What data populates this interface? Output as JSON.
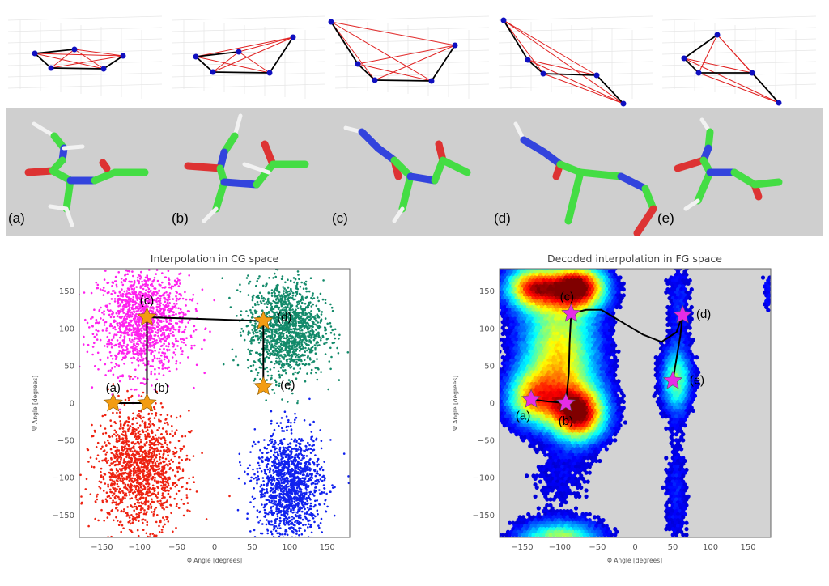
{
  "panel_labels": [
    "(a)",
    "(b)",
    "(c)",
    "(d)",
    "(e)"
  ],
  "colors": {
    "cg_star": "#f39c12",
    "fg_star": "#e62ce6",
    "path": "#000000",
    "fg_background": "#d3d3d3",
    "bond_chain": "#000000",
    "bond_pair": "#e02020",
    "bead": "#1010c0"
  },
  "chart_data": [
    {
      "type": "scatter",
      "title": "Interpolation in CG space",
      "xlabel": "Φ Angle [degrees]",
      "ylabel": "Ψ Angle [degrees]",
      "xlim": [
        -180,
        180
      ],
      "ylim": [
        -180,
        180
      ],
      "xticks": [
        -150,
        -100,
        -50,
        0,
        50,
        100,
        150
      ],
      "yticks": [
        -150,
        -100,
        -50,
        0,
        50,
        100,
        150
      ],
      "xtick_labels": [
        "−150",
        "−100",
        "−50",
        "0",
        "50",
        "100",
        "150"
      ],
      "ytick_labels": [
        "−150",
        "−100",
        "−50",
        "0",
        "50",
        "100",
        "150"
      ],
      "clusters": [
        {
          "name": "magenta",
          "color": "#ff22ee",
          "center": [
            -95,
            110
          ],
          "spread": [
            30,
            35
          ]
        },
        {
          "name": "green",
          "color": "#138a6a",
          "center": [
            95,
            100
          ],
          "spread": [
            25,
            32
          ]
        },
        {
          "name": "red",
          "color": "#ee2211",
          "center": [
            -100,
            -90
          ],
          "spread": [
            28,
            38
          ]
        },
        {
          "name": "blue",
          "color": "#1122ee",
          "center": [
            100,
            -110
          ],
          "spread": [
            22,
            35
          ]
        }
      ],
      "path": [
        [
          -135,
          0
        ],
        [
          -90,
          0
        ],
        [
          -90,
          115
        ],
        [
          65,
          110
        ],
        [
          65,
          22
        ]
      ],
      "points": [
        {
          "label": "(a)",
          "phi": -135,
          "psi": 0
        },
        {
          "label": "(b)",
          "phi": -90,
          "psi": 0
        },
        {
          "label": "(c)",
          "phi": -90,
          "psi": 115
        },
        {
          "label": "(d)",
          "phi": 65,
          "psi": 110
        },
        {
          "label": "(e)",
          "phi": 65,
          "psi": 22
        }
      ]
    },
    {
      "type": "heatmap",
      "title": "Decoded interpolation in FG space",
      "xlabel": "Φ Angle [degrees]",
      "ylabel": "Ψ Angle [degrees]",
      "xlim": [
        -180,
        180
      ],
      "ylim": [
        -180,
        180
      ],
      "xticks": [
        -150,
        -100,
        -50,
        0,
        50,
        100,
        150
      ],
      "yticks": [
        -150,
        -100,
        -50,
        0,
        50,
        100,
        150
      ],
      "xtick_labels": [
        "−150",
        "−100",
        "−50",
        "0",
        "50",
        "100",
        "150"
      ],
      "ytick_labels": [
        "−150",
        "−100",
        "−50",
        "0",
        "50",
        "100",
        "150"
      ],
      "density_components": [
        [
          -75,
          155,
          25,
          20,
          1.0
        ],
        [
          -135,
          155,
          25,
          20,
          0.8
        ],
        [
          -100,
          100,
          35,
          40,
          0.45
        ],
        [
          -100,
          40,
          35,
          35,
          0.45
        ],
        [
          -75,
          -15,
          25,
          25,
          1.0
        ],
        [
          -135,
          5,
          25,
          25,
          0.6
        ],
        [
          -100,
          -185,
          38,
          18,
          0.6
        ],
        [
          -100,
          -100,
          35,
          30,
          0.1
        ],
        [
          55,
          30,
          14,
          30,
          0.5
        ],
        [
          58,
          135,
          12,
          40,
          0.15
        ],
        [
          55,
          -120,
          12,
          55,
          0.14
        ],
        [
          180,
          150,
          8,
          22,
          0.15
        ]
      ],
      "path": [
        [
          -138,
          5
        ],
        [
          -115,
          2
        ],
        [
          -92,
          0
        ],
        [
          -88,
          40
        ],
        [
          -87,
          80
        ],
        [
          -85,
          120
        ],
        [
          -65,
          125
        ],
        [
          -45,
          125
        ],
        [
          -20,
          110
        ],
        [
          10,
          92
        ],
        [
          35,
          82
        ],
        [
          55,
          95
        ],
        [
          63,
          118
        ],
        [
          60,
          90
        ],
        [
          55,
          60
        ],
        [
          50,
          30
        ]
      ],
      "points": [
        {
          "label": "(a)",
          "phi": -138,
          "psi": 5
        },
        {
          "label": "(b)",
          "phi": -92,
          "psi": 0
        },
        {
          "label": "(c)",
          "phi": -85,
          "psi": 120
        },
        {
          "label": "(d)",
          "phi": 63,
          "psi": 118
        },
        {
          "label": "(e)",
          "phi": 50,
          "psi": 30
        }
      ]
    }
  ]
}
